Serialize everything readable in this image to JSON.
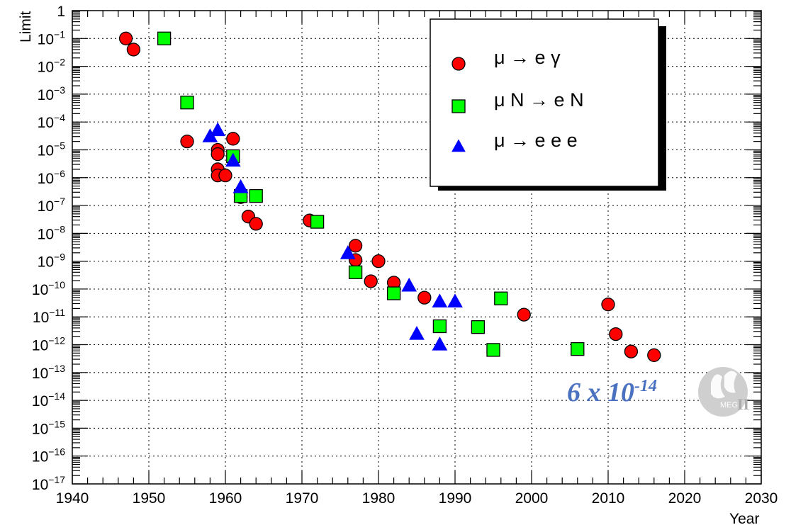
{
  "chart_data": {
    "type": "scatter",
    "ylabel": "Limit",
    "xlabel": "Year",
    "xlim": [
      1940,
      2030
    ],
    "ylim_log10": [
      -17,
      0
    ],
    "y_scale": "log",
    "grid": true,
    "legend_position": "top-right",
    "x_tick_labels": [
      "1940",
      "1950",
      "1960",
      "1970",
      "1980",
      "1990",
      "2000",
      "2010",
      "2020",
      "2030"
    ],
    "y_tick_labels": [
      {
        "base": "10",
        "exp": "−17"
      },
      {
        "base": "10",
        "exp": "−16"
      },
      {
        "base": "10",
        "exp": "−15"
      },
      {
        "base": "10",
        "exp": "−14"
      },
      {
        "base": "10",
        "exp": "−13"
      },
      {
        "base": "10",
        "exp": "−12"
      },
      {
        "base": "10",
        "exp": "−11"
      },
      {
        "base": "10",
        "exp": "−10"
      },
      {
        "base": "10",
        "exp": "−9"
      },
      {
        "base": "10",
        "exp": "−8"
      },
      {
        "base": "10",
        "exp": "−7"
      },
      {
        "base": "10",
        "exp": "−6"
      },
      {
        "base": "10",
        "exp": "−5"
      },
      {
        "base": "10",
        "exp": "−4"
      },
      {
        "base": "10",
        "exp": "−3"
      },
      {
        "base": "10",
        "exp": "−2"
      },
      {
        "base": "10",
        "exp": "−1"
      },
      {
        "base": "1",
        "exp": ""
      }
    ],
    "series": [
      {
        "name": "μ → e γ",
        "marker": "circle",
        "color": "#ff0000",
        "points": [
          [
            1947,
            0.1
          ],
          [
            1948,
            0.04
          ],
          [
            1955,
            2e-05
          ],
          [
            1959,
            1e-05
          ],
          [
            1959,
            7e-06
          ],
          [
            1959,
            2e-06
          ],
          [
            1959,
            1.2e-06
          ],
          [
            1960,
            1.2e-06
          ],
          [
            1961,
            2.5e-05
          ],
          [
            1962,
            2e-07
          ],
          [
            1963,
            4e-08
          ],
          [
            1964,
            2.2e-08
          ],
          [
            1971,
            2.9e-08
          ],
          [
            1977,
            3.6e-09
          ],
          [
            1977,
            1.1e-09
          ],
          [
            1979,
            1.9e-10
          ],
          [
            1980,
            1e-09
          ],
          [
            1982,
            1.7e-10
          ],
          [
            1986,
            4.9e-11
          ],
          [
            1999,
            1.2e-11
          ],
          [
            2010,
            2.8e-11
          ],
          [
            2011,
            2.4e-12
          ],
          [
            2013,
            5.7e-13
          ],
          [
            2016,
            4.2e-13
          ]
        ]
      },
      {
        "name": "μ N →  e N",
        "marker": "square",
        "color": "#00ff00",
        "points": [
          [
            1952,
            0.1
          ],
          [
            1955,
            0.0005
          ],
          [
            1961,
            5.9e-06
          ],
          [
            1962,
            2.2e-07
          ],
          [
            1964,
            2.2e-07
          ],
          [
            1972,
            2.6e-08
          ],
          [
            1977,
            4e-10
          ],
          [
            1982,
            7e-11
          ],
          [
            1988,
            4.6e-12
          ],
          [
            1993,
            4.3e-12
          ],
          [
            1995,
            6.5e-13
          ],
          [
            1996,
            4.6e-11
          ],
          [
            2006,
            7e-13
          ]
        ]
      },
      {
        "name": "μ → e e e",
        "marker": "triangle",
        "color": "#0000ff",
        "points": [
          [
            1958,
            3e-05
          ],
          [
            1959,
            5e-05
          ],
          [
            1961,
            4e-06
          ],
          [
            1962,
            4.5e-07
          ],
          [
            1976,
            1.9e-09
          ],
          [
            1984,
            1.3e-10
          ],
          [
            1985,
            2.4e-12
          ],
          [
            1988,
            3.5e-11
          ],
          [
            1988,
            1e-12
          ],
          [
            1990,
            3.5e-11
          ]
        ]
      }
    ],
    "annotation": {
      "base": "6 x 10",
      "exp": "-14"
    },
    "logo": {
      "name": "meg-ii-logo",
      "text": "MEG",
      "suffix": "II"
    }
  }
}
